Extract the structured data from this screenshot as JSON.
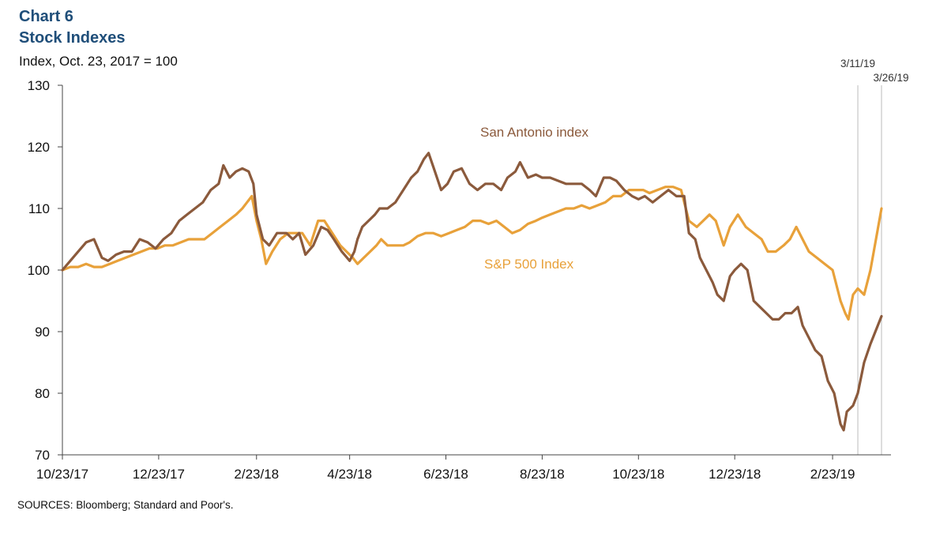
{
  "chart_data": {
    "type": "line",
    "title": "Chart 6",
    "subtitle": "Stock Indexes",
    "ylabel": "Index, Oct. 23, 2017 = 100",
    "source": "SOURCES:  Bloomberg; Standard and Poor's.",
    "ylim": [
      70,
      130
    ],
    "yticks": [
      70,
      80,
      90,
      100,
      110,
      120,
      130
    ],
    "xlim": [
      "2017-10-23",
      "2019-04-01"
    ],
    "xticks": [
      {
        "date": "2017-10-23",
        "label": "10/23/17"
      },
      {
        "date": "2017-12-23",
        "label": "12/23/17"
      },
      {
        "date": "2018-02-23",
        "label": "2/23/18"
      },
      {
        "date": "2018-04-23",
        "label": "4/23/18"
      },
      {
        "date": "2018-06-23",
        "label": "6/23/18"
      },
      {
        "date": "2018-08-23",
        "label": "8/23/18"
      },
      {
        "date": "2018-10-23",
        "label": "10/23/18"
      },
      {
        "date": "2018-12-23",
        "label": "12/23/18"
      },
      {
        "date": "2019-02-23",
        "label": "2/23/19"
      }
    ],
    "grid": false,
    "vlines": [
      {
        "date": "2019-03-11",
        "label": "3/11/19"
      },
      {
        "date": "2019-03-26",
        "label": "3/26/19"
      }
    ],
    "series": [
      {
        "name": "San Antonio index",
        "color": "#8b5a3c",
        "points": [
          [
            "2017-10-23",
            100
          ],
          [
            "2017-10-28",
            101.5
          ],
          [
            "2017-11-02",
            103
          ],
          [
            "2017-11-07",
            104.5
          ],
          [
            "2017-11-12",
            105
          ],
          [
            "2017-11-17",
            102
          ],
          [
            "2017-11-21",
            101.5
          ],
          [
            "2017-11-26",
            102.5
          ],
          [
            "2017-12-01",
            103
          ],
          [
            "2017-12-06",
            103
          ],
          [
            "2017-12-11",
            105
          ],
          [
            "2017-12-16",
            104.5
          ],
          [
            "2017-12-21",
            103.5
          ],
          [
            "2017-12-26",
            105
          ],
          [
            "2017-12-31",
            106
          ],
          [
            "2018-01-05",
            108
          ],
          [
            "2018-01-10",
            109
          ],
          [
            "2018-01-15",
            110
          ],
          [
            "2018-01-20",
            111
          ],
          [
            "2018-01-25",
            113
          ],
          [
            "2018-01-30",
            114
          ],
          [
            "2018-02-02",
            117
          ],
          [
            "2018-02-06",
            115
          ],
          [
            "2018-02-10",
            116
          ],
          [
            "2018-02-14",
            116.5
          ],
          [
            "2018-02-18",
            116
          ],
          [
            "2018-02-21",
            114
          ],
          [
            "2018-02-23",
            109
          ],
          [
            "2018-02-27",
            105
          ],
          [
            "2018-03-03",
            104
          ],
          [
            "2018-03-08",
            106
          ],
          [
            "2018-03-14",
            106
          ],
          [
            "2018-03-18",
            105
          ],
          [
            "2018-03-22",
            106
          ],
          [
            "2018-03-26",
            102.5
          ],
          [
            "2018-03-31",
            104
          ],
          [
            "2018-04-05",
            107
          ],
          [
            "2018-04-09",
            106.5
          ],
          [
            "2018-04-13",
            105
          ],
          [
            "2018-04-18",
            103
          ],
          [
            "2018-04-23",
            101.5
          ],
          [
            "2018-04-26",
            103
          ],
          [
            "2018-04-28",
            105
          ],
          [
            "2018-05-01",
            107
          ],
          [
            "2018-05-05",
            108
          ],
          [
            "2018-05-09",
            109
          ],
          [
            "2018-05-12",
            110
          ],
          [
            "2018-05-17",
            110
          ],
          [
            "2018-05-22",
            111
          ],
          [
            "2018-05-27",
            113
          ],
          [
            "2018-06-01",
            115
          ],
          [
            "2018-06-05",
            116
          ],
          [
            "2018-06-09",
            118
          ],
          [
            "2018-06-12",
            119
          ],
          [
            "2018-06-16",
            116
          ],
          [
            "2018-06-20",
            113
          ],
          [
            "2018-06-24",
            114
          ],
          [
            "2018-06-28",
            116
          ],
          [
            "2018-07-03",
            116.5
          ],
          [
            "2018-07-08",
            114
          ],
          [
            "2018-07-13",
            113
          ],
          [
            "2018-07-18",
            114
          ],
          [
            "2018-07-23",
            114
          ],
          [
            "2018-07-28",
            113
          ],
          [
            "2018-08-01",
            115
          ],
          [
            "2018-08-06",
            116
          ],
          [
            "2018-08-09",
            117.5
          ],
          [
            "2018-08-14",
            115
          ],
          [
            "2018-08-19",
            115.5
          ],
          [
            "2018-08-23",
            115
          ],
          [
            "2018-08-28",
            115
          ],
          [
            "2018-09-02",
            114.5
          ],
          [
            "2018-09-07",
            114
          ],
          [
            "2018-09-12",
            114
          ],
          [
            "2018-09-17",
            114
          ],
          [
            "2018-09-22",
            113
          ],
          [
            "2018-09-26",
            112
          ],
          [
            "2018-10-01",
            115
          ],
          [
            "2018-10-05",
            115
          ],
          [
            "2018-10-09",
            114.5
          ],
          [
            "2018-10-14",
            113
          ],
          [
            "2018-10-19",
            112
          ],
          [
            "2018-10-23",
            111.5
          ],
          [
            "2018-10-27",
            112
          ],
          [
            "2018-11-01",
            111
          ],
          [
            "2018-11-06",
            112
          ],
          [
            "2018-11-11",
            113
          ],
          [
            "2018-11-16",
            112
          ],
          [
            "2018-11-21",
            112
          ],
          [
            "2018-11-24",
            106
          ],
          [
            "2018-11-28",
            105
          ],
          [
            "2018-12-01",
            102
          ],
          [
            "2018-12-05",
            100
          ],
          [
            "2018-12-09",
            98
          ],
          [
            "2018-12-12",
            96
          ],
          [
            "2018-12-16",
            95
          ],
          [
            "2018-12-20",
            99
          ],
          [
            "2018-12-23",
            100
          ],
          [
            "2018-12-27",
            101
          ],
          [
            "2018-12-31",
            100
          ],
          [
            "2019-01-04",
            95
          ],
          [
            "2019-01-08",
            94
          ],
          [
            "2019-01-12",
            93
          ],
          [
            "2019-01-16",
            92
          ],
          [
            "2019-01-20",
            92
          ],
          [
            "2019-01-24",
            93
          ],
          [
            "2019-01-28",
            93
          ],
          [
            "2019-02-01",
            94
          ],
          [
            "2019-02-04",
            91
          ],
          [
            "2019-02-08",
            89
          ],
          [
            "2019-02-12",
            87
          ],
          [
            "2019-02-16",
            86
          ],
          [
            "2019-02-20",
            82
          ],
          [
            "2019-02-24",
            80
          ],
          [
            "2019-02-28",
            75
          ],
          [
            "2019-03-02",
            74
          ],
          [
            "2019-03-04",
            77
          ],
          [
            "2019-03-08",
            78
          ],
          [
            "2019-03-11",
            80
          ],
          [
            "2019-03-15",
            85
          ],
          [
            "2019-03-19",
            88
          ],
          [
            "2019-03-26",
            92.5
          ]
        ]
      },
      {
        "name": "S&P 500 Index",
        "color": "#e8a13a",
        "points": [
          [
            "2017-10-23",
            100
          ],
          [
            "2017-10-28",
            100.5
          ],
          [
            "2017-11-02",
            100.5
          ],
          [
            "2017-11-07",
            101
          ],
          [
            "2017-11-12",
            100.5
          ],
          [
            "2017-11-17",
            100.5
          ],
          [
            "2017-11-22",
            101
          ],
          [
            "2017-11-27",
            101.5
          ],
          [
            "2017-12-02",
            102
          ],
          [
            "2017-12-07",
            102.5
          ],
          [
            "2017-12-12",
            103
          ],
          [
            "2017-12-17",
            103.5
          ],
          [
            "2017-12-22",
            103.5
          ],
          [
            "2017-12-27",
            104
          ],
          [
            "2018-01-01",
            104
          ],
          [
            "2018-01-06",
            104.5
          ],
          [
            "2018-01-11",
            105
          ],
          [
            "2018-01-16",
            105
          ],
          [
            "2018-01-21",
            105
          ],
          [
            "2018-01-26",
            106
          ],
          [
            "2018-01-31",
            107
          ],
          [
            "2018-02-05",
            108
          ],
          [
            "2018-02-10",
            109
          ],
          [
            "2018-02-14",
            110
          ],
          [
            "2018-02-17",
            111
          ],
          [
            "2018-02-20",
            112
          ],
          [
            "2018-02-23",
            108
          ],
          [
            "2018-02-26",
            105
          ],
          [
            "2018-03-01",
            101
          ],
          [
            "2018-03-05",
            103
          ],
          [
            "2018-03-10",
            105
          ],
          [
            "2018-03-15",
            106
          ],
          [
            "2018-03-19",
            106
          ],
          [
            "2018-03-24",
            106
          ],
          [
            "2018-03-29",
            104
          ],
          [
            "2018-04-03",
            108
          ],
          [
            "2018-04-07",
            108
          ],
          [
            "2018-04-12",
            106
          ],
          [
            "2018-04-17",
            104
          ],
          [
            "2018-04-21",
            103
          ],
          [
            "2018-04-25",
            102
          ],
          [
            "2018-04-28",
            101
          ],
          [
            "2018-05-02",
            102
          ],
          [
            "2018-05-06",
            103
          ],
          [
            "2018-05-10",
            104
          ],
          [
            "2018-05-13",
            105
          ],
          [
            "2018-05-17",
            104
          ],
          [
            "2018-05-22",
            104
          ],
          [
            "2018-05-27",
            104
          ],
          [
            "2018-05-31",
            104.5
          ],
          [
            "2018-06-05",
            105.5
          ],
          [
            "2018-06-10",
            106
          ],
          [
            "2018-06-15",
            106
          ],
          [
            "2018-06-20",
            105.5
          ],
          [
            "2018-06-25",
            106
          ],
          [
            "2018-06-30",
            106.5
          ],
          [
            "2018-07-05",
            107
          ],
          [
            "2018-07-10",
            108
          ],
          [
            "2018-07-15",
            108
          ],
          [
            "2018-07-20",
            107.5
          ],
          [
            "2018-07-25",
            108
          ],
          [
            "2018-07-30",
            107
          ],
          [
            "2018-08-04",
            106
          ],
          [
            "2018-08-09",
            106.5
          ],
          [
            "2018-08-14",
            107.5
          ],
          [
            "2018-08-19",
            108
          ],
          [
            "2018-08-23",
            108.5
          ],
          [
            "2018-08-28",
            109
          ],
          [
            "2018-09-02",
            109.5
          ],
          [
            "2018-09-07",
            110
          ],
          [
            "2018-09-12",
            110
          ],
          [
            "2018-09-17",
            110.5
          ],
          [
            "2018-09-22",
            110
          ],
          [
            "2018-09-27",
            110.5
          ],
          [
            "2018-10-02",
            111
          ],
          [
            "2018-10-07",
            112
          ],
          [
            "2018-10-12",
            112
          ],
          [
            "2018-10-17",
            113
          ],
          [
            "2018-10-22",
            113
          ],
          [
            "2018-10-26",
            113
          ],
          [
            "2018-10-30",
            112.5
          ],
          [
            "2018-11-04",
            113
          ],
          [
            "2018-11-09",
            113.5
          ],
          [
            "2018-11-14",
            113.5
          ],
          [
            "2018-11-19",
            113
          ],
          [
            "2018-11-24",
            108
          ],
          [
            "2018-11-29",
            107
          ],
          [
            "2018-12-03",
            108
          ],
          [
            "2018-12-07",
            109
          ],
          [
            "2018-12-11",
            108
          ],
          [
            "2018-12-16",
            104
          ],
          [
            "2018-12-20",
            107
          ],
          [
            "2018-12-25",
            109
          ],
          [
            "2018-12-30",
            107
          ],
          [
            "2019-01-04",
            106
          ],
          [
            "2019-01-09",
            105
          ],
          [
            "2019-01-13",
            103
          ],
          [
            "2019-01-18",
            103
          ],
          [
            "2019-01-23",
            104
          ],
          [
            "2019-01-27",
            105
          ],
          [
            "2019-01-31",
            107
          ],
          [
            "2019-02-04",
            105
          ],
          [
            "2019-02-08",
            103
          ],
          [
            "2019-02-13",
            102
          ],
          [
            "2019-02-18",
            101
          ],
          [
            "2019-02-23",
            100
          ],
          [
            "2019-02-26",
            97
          ],
          [
            "2019-02-28",
            95
          ],
          [
            "2019-03-03",
            93
          ],
          [
            "2019-03-05",
            92
          ],
          [
            "2019-03-08",
            96
          ],
          [
            "2019-03-11",
            97
          ],
          [
            "2019-03-15",
            96
          ],
          [
            "2019-03-19",
            100
          ],
          [
            "2019-03-26",
            110
          ]
        ]
      }
    ]
  }
}
